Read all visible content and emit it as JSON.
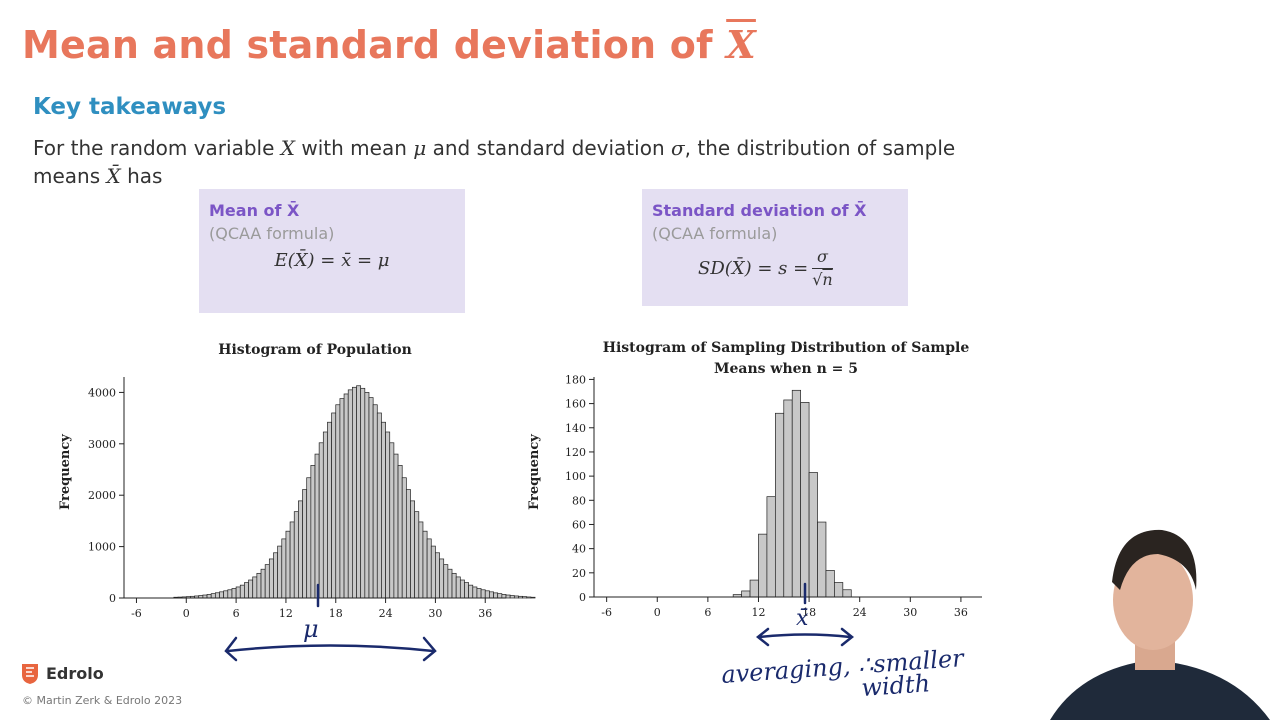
{
  "title": {
    "text": "Mean and standard deviation of",
    "symbol": "X"
  },
  "subheading": "Key takeaways",
  "intro": {
    "part1": "For the random variable ",
    "var_x": "X",
    "part2": " with mean ",
    "mu": "μ",
    "part3": " and standard deviation ",
    "sigma": "σ",
    "part4": ", the distribution of sample means ",
    "xbar": "X̄",
    "part5": " has"
  },
  "mean_box": {
    "title": "Mean of X̄",
    "subtitle": "(QCAA formula)",
    "formula": "E(X̄) = x̄ = μ"
  },
  "sd_box": {
    "title": "Standard deviation of X̄",
    "subtitle": "(QCAA formula)",
    "formula_lhs": "SD(X̄) = s = ",
    "numerator": "σ",
    "denominator": "n"
  },
  "annotations": {
    "mu_mark": "μ",
    "xbar_mark": "x̄",
    "note_line1": "averaging, ∴smaller",
    "note_line2": "width"
  },
  "branding": {
    "logo": "Edrolo",
    "copyright": "© Martin Zerk & Edrolo 2023"
  },
  "colors": {
    "title": "#e8775c",
    "subheading": "#2f8fc0",
    "box_bg": "#e4dff2",
    "box_title": "#7b55c6",
    "bar_fill": "#c8c8c8",
    "ink": "#1a2a6c"
  },
  "chart_data": [
    {
      "type": "bar",
      "title": "Histogram of Population",
      "xlabel": "",
      "ylabel": "Frequency",
      "xlim": [
        -7.5,
        38.5
      ],
      "ylim": [
        0,
        4300
      ],
      "x_ticks": [
        -6,
        0,
        6,
        12,
        18,
        24,
        30,
        36
      ],
      "y_ticks": [
        0,
        1000,
        2000,
        3000,
        4000
      ],
      "bin_width": 0.5,
      "bin_start": -1.5,
      "values": [
        15,
        18,
        22,
        27,
        33,
        40,
        48,
        58,
        70,
        85,
        102,
        120,
        140,
        160,
        185,
        215,
        250,
        300,
        350,
        410,
        480,
        560,
        650,
        760,
        880,
        1010,
        1150,
        1300,
        1480,
        1680,
        1890,
        2110,
        2340,
        2580,
        2800,
        3020,
        3230,
        3420,
        3600,
        3760,
        3880,
        3970,
        4050,
        4100,
        4130,
        4080,
        4000,
        3900,
        3760,
        3600,
        3420,
        3230,
        3020,
        2800,
        2580,
        2340,
        2110,
        1890,
        1680,
        1480,
        1300,
        1150,
        1010,
        880,
        760,
        650,
        560,
        480,
        410,
        350,
        300,
        250,
        215,
        185,
        160,
        140,
        120,
        100,
        85,
        70,
        58,
        48,
        40,
        33,
        27,
        20,
        15
      ]
    },
    {
      "type": "bar",
      "title": "Histogram of Sampling Distribution of Sample Means when n = 5",
      "xlabel": "",
      "ylabel": "Frequency",
      "xlim": [
        -7.5,
        38.5
      ],
      "ylim": [
        0,
        182
      ],
      "x_ticks": [
        -6,
        0,
        6,
        12,
        18,
        24,
        30,
        36
      ],
      "y_ticks": [
        0,
        20,
        40,
        60,
        80,
        100,
        120,
        140,
        160,
        180
      ],
      "bin_width": 1,
      "bin_start": 9,
      "values": [
        2,
        5,
        14,
        52,
        83,
        152,
        163,
        171,
        161,
        103,
        62,
        22,
        12,
        6
      ]
    }
  ]
}
